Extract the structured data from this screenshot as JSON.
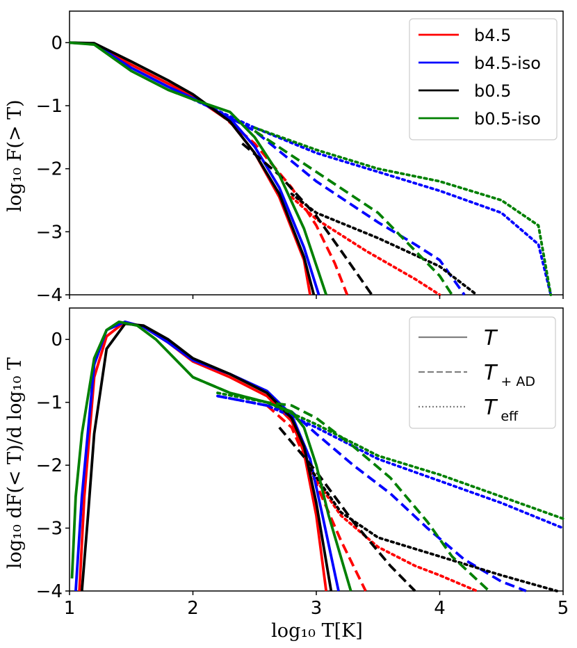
{
  "chart_data": [
    {
      "type": "line",
      "ylabel": "log₁₀ F(> T)",
      "xlim": [
        1,
        5
      ],
      "ylim": [
        -4,
        0.5
      ],
      "yticks": [
        "0",
        "−1",
        "−2",
        "−3",
        "−4"
      ],
      "legend": {
        "placement": "top-right",
        "entries": [
          "b4.5",
          "b4.5-iso",
          "b0.5",
          "b0.5-iso"
        ]
      },
      "colors": {
        "b4.5": "#ff0000",
        "b4.5-iso": "#0000ff",
        "b0.5": "#000000",
        "b0.5-iso": "#008000"
      },
      "series": [
        {
          "name": "b4.5",
          "style": "solid",
          "x": [
            1.0,
            1.2,
            1.5,
            1.8,
            2.0,
            2.3,
            2.5,
            2.7,
            2.9,
            2.95
          ],
          "y": [
            0,
            -0.02,
            -0.35,
            -0.65,
            -0.85,
            -1.25,
            -1.75,
            -2.45,
            -3.45,
            -4.0
          ]
        },
        {
          "name": "b4.5",
          "style": "dashed",
          "x": [
            2.2,
            2.5,
            2.8,
            3.0,
            3.15,
            3.25
          ],
          "y": [
            -1.1,
            -1.6,
            -2.3,
            -2.9,
            -3.5,
            -4.0
          ]
        },
        {
          "name": "b4.5",
          "style": "dotted",
          "x": [
            2.8,
            3.0,
            3.4,
            3.8,
            4.0
          ],
          "y": [
            -2.45,
            -2.8,
            -3.3,
            -3.75,
            -4.0
          ]
        },
        {
          "name": "b4.5-iso",
          "style": "solid",
          "x": [
            1.0,
            1.2,
            1.5,
            1.8,
            2.0,
            2.3,
            2.5,
            2.7,
            2.9,
            3.02
          ],
          "y": [
            0,
            -0.02,
            -0.4,
            -0.7,
            -0.88,
            -1.2,
            -1.65,
            -2.3,
            -3.25,
            -4.0
          ]
        },
        {
          "name": "b4.5-iso",
          "style": "dashed",
          "x": [
            2.0,
            2.5,
            3.0,
            3.5,
            3.8,
            4.0,
            4.2
          ],
          "y": [
            -0.88,
            -1.4,
            -2.2,
            -2.85,
            -3.2,
            -3.45,
            -4.0
          ]
        },
        {
          "name": "b4.5-iso",
          "style": "dotted",
          "x": [
            2.0,
            2.5,
            3.0,
            3.5,
            4.0,
            4.5,
            4.8,
            4.9
          ],
          "y": [
            -0.9,
            -1.35,
            -1.75,
            -2.05,
            -2.35,
            -2.7,
            -3.2,
            -4.0
          ]
        },
        {
          "name": "b0.5",
          "style": "solid",
          "x": [
            1.0,
            1.2,
            1.5,
            1.8,
            2.0,
            2.3,
            2.5,
            2.7,
            2.9,
            2.98
          ],
          "y": [
            0,
            -0.01,
            -0.3,
            -0.6,
            -0.82,
            -1.25,
            -1.75,
            -2.4,
            -3.4,
            -4.0
          ]
        },
        {
          "name": "b0.5",
          "style": "dashed",
          "x": [
            2.4,
            2.7,
            3.0,
            3.2,
            3.45
          ],
          "y": [
            -1.6,
            -2.1,
            -2.75,
            -3.3,
            -4.0
          ]
        },
        {
          "name": "b0.5",
          "style": "dotted",
          "x": [
            2.8,
            3.0,
            3.5,
            4.0,
            4.3
          ],
          "y": [
            -2.4,
            -2.7,
            -3.1,
            -3.55,
            -4.0
          ]
        },
        {
          "name": "b0.5-iso",
          "style": "solid",
          "x": [
            1.0,
            1.2,
            1.5,
            1.8,
            2.0,
            2.3,
            2.5,
            2.7,
            2.9,
            3.08
          ],
          "y": [
            0,
            -0.03,
            -0.45,
            -0.75,
            -0.9,
            -1.1,
            -1.5,
            -2.1,
            -2.95,
            -4.0
          ]
        },
        {
          "name": "b0.5-iso",
          "style": "dashed",
          "x": [
            2.5,
            3.0,
            3.5,
            3.8,
            4.0,
            4.1
          ],
          "y": [
            -1.4,
            -2.05,
            -2.7,
            -3.3,
            -3.7,
            -4.0
          ]
        },
        {
          "name": "b0.5-iso",
          "style": "dotted",
          "x": [
            2.5,
            3.0,
            3.5,
            4.0,
            4.5,
            4.8,
            4.9
          ],
          "y": [
            -1.35,
            -1.7,
            -2.0,
            -2.2,
            -2.5,
            -2.9,
            -4.0
          ]
        }
      ]
    },
    {
      "type": "line",
      "xlabel": "log₁₀ T[K]",
      "ylabel": "log₁₀ dF(< T)/d log₁₀ T",
      "xlim": [
        1,
        5
      ],
      "ylim": [
        -4,
        0.5
      ],
      "xticks": [
        "1",
        "2",
        "3",
        "4",
        "5"
      ],
      "yticks": [
        "0",
        "−1",
        "−2",
        "−3",
        "−4"
      ],
      "legend": {
        "placement": "top-right",
        "entries": [
          "T",
          "T+AD",
          "Teff"
        ],
        "entry_main": [
          "T",
          "T",
          "T"
        ],
        "entry_sub": [
          "",
          "+ AD",
          "eff"
        ]
      },
      "legend_color": "#808080",
      "series": [
        {
          "name": "b4.5",
          "style": "solid",
          "x": [
            1.08,
            1.12,
            1.2,
            1.3,
            1.45,
            1.6,
            1.8,
            2.0,
            2.3,
            2.6,
            2.8,
            2.9,
            3.0,
            3.08
          ],
          "y": [
            -4.0,
            -2.5,
            -0.6,
            0.05,
            0.28,
            0.2,
            -0.05,
            -0.35,
            -0.6,
            -0.9,
            -1.3,
            -1.8,
            -2.8,
            -4.0
          ]
        },
        {
          "name": "b4.5",
          "style": "dashed",
          "x": [
            2.6,
            2.8,
            3.0,
            3.2,
            3.4
          ],
          "y": [
            -1.05,
            -1.4,
            -2.3,
            -3.2,
            -4.0
          ]
        },
        {
          "name": "b4.5",
          "style": "dotted",
          "x": [
            2.95,
            3.2,
            3.5,
            3.8,
            4.0,
            4.3
          ],
          "y": [
            -2.1,
            -2.8,
            -3.3,
            -3.6,
            -3.75,
            -4.0
          ]
        },
        {
          "name": "b4.5-iso",
          "style": "solid",
          "x": [
            1.05,
            1.1,
            1.2,
            1.3,
            1.45,
            1.6,
            1.8,
            2.0,
            2.3,
            2.6,
            2.8,
            2.95,
            3.05,
            3.18
          ],
          "y": [
            -4.0,
            -2.5,
            -0.4,
            0.15,
            0.28,
            0.2,
            -0.05,
            -0.33,
            -0.55,
            -0.82,
            -1.2,
            -1.9,
            -2.8,
            -4.0
          ]
        },
        {
          "name": "b4.5-iso",
          "style": "dashed",
          "x": [
            2.2,
            2.6,
            2.8,
            3.0,
            3.3,
            3.6,
            3.9,
            4.2,
            4.5,
            4.7
          ],
          "y": [
            -0.9,
            -1.05,
            -1.15,
            -1.5,
            -2.0,
            -2.45,
            -3.0,
            -3.5,
            -3.85,
            -4.0
          ]
        },
        {
          "name": "b4.5-iso",
          "style": "dotted",
          "x": [
            2.2,
            2.6,
            3.0,
            3.5,
            4.0,
            4.5,
            5.0
          ],
          "y": [
            -0.9,
            -1.05,
            -1.4,
            -1.9,
            -2.25,
            -2.6,
            -3.0
          ]
        },
        {
          "name": "b0.5",
          "style": "solid",
          "x": [
            1.1,
            1.15,
            1.2,
            1.3,
            1.45,
            1.6,
            1.8,
            2.0,
            2.3,
            2.6,
            2.8,
            2.9,
            3.0,
            3.12
          ],
          "y": [
            -4.0,
            -2.8,
            -1.5,
            -0.15,
            0.25,
            0.22,
            0.0,
            -0.3,
            -0.55,
            -0.85,
            -1.25,
            -1.7,
            -2.6,
            -4.0
          ]
        },
        {
          "name": "b0.5",
          "style": "dashed",
          "x": [
            2.7,
            3.0,
            3.3,
            3.6,
            3.8
          ],
          "y": [
            -1.4,
            -2.1,
            -2.9,
            -3.6,
            -4.0
          ]
        },
        {
          "name": "b0.5",
          "style": "dotted",
          "x": [
            2.95,
            3.2,
            3.5,
            4.0,
            4.5,
            4.95
          ],
          "y": [
            -2.05,
            -2.75,
            -3.15,
            -3.45,
            -3.75,
            -4.0
          ]
        },
        {
          "name": "b0.5-iso",
          "style": "solid",
          "x": [
            1.02,
            1.05,
            1.1,
            1.2,
            1.3,
            1.4,
            1.55,
            1.7,
            1.9,
            2.0,
            2.3,
            2.6,
            2.8,
            2.9,
            3.0,
            3.1,
            3.28
          ],
          "y": [
            -3.8,
            -2.5,
            -1.5,
            -0.3,
            0.15,
            0.28,
            0.22,
            0.0,
            -0.4,
            -0.6,
            -0.85,
            -1.0,
            -1.15,
            -1.4,
            -2.0,
            -2.8,
            -4.0
          ]
        },
        {
          "name": "b0.5-iso",
          "style": "dashed",
          "x": [
            2.0,
            2.3,
            2.6,
            2.8,
            3.0,
            3.3,
            3.6,
            3.9,
            4.1,
            4.4
          ],
          "y": [
            -0.6,
            -0.85,
            -1.0,
            -1.05,
            -1.25,
            -1.7,
            -2.2,
            -2.9,
            -3.45,
            -4.0
          ]
        },
        {
          "name": "b0.5-iso",
          "style": "dotted",
          "x": [
            2.2,
            2.6,
            3.0,
            3.5,
            4.0,
            4.5,
            5.0
          ],
          "y": [
            -0.85,
            -1.0,
            -1.35,
            -1.85,
            -2.15,
            -2.5,
            -2.85
          ]
        }
      ]
    }
  ]
}
